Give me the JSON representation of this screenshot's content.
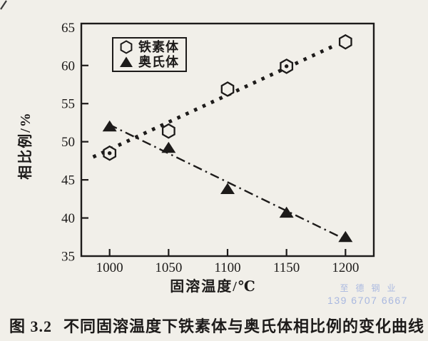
{
  "page": {
    "background": "#f1efe9",
    "ink": "#1d1b1a"
  },
  "chart_data": {
    "type": "line",
    "title": "",
    "xlabel": "固溶温度/℃",
    "ylabel": "相比例/%",
    "xlim": [
      976,
      1224
    ],
    "ylim": [
      35,
      65.5
    ],
    "x_ticks": [
      1000,
      1050,
      1100,
      1150,
      1200
    ],
    "y_ticks": [
      35,
      40,
      45,
      50,
      55,
      60,
      65
    ],
    "grid": false,
    "legend_position": "upper-left-inside",
    "categories": [
      1000,
      1050,
      1100,
      1150,
      1200
    ],
    "series": [
      {
        "name": "铁素体",
        "marker": "open-hexagon",
        "line_style": "bold-dotted",
        "values": [
          48.5,
          51.4,
          56.9,
          59.9,
          63.1
        ],
        "marker_center_dots": [
          true,
          false,
          false,
          true,
          false
        ],
        "trend_line": {
          "x1": 986,
          "y1": 48.0,
          "x2": 1192,
          "y2": 62.7
        }
      },
      {
        "name": "奥氏体",
        "marker": "filled-triangle",
        "line_style": "dash-dot",
        "values": [
          52.0,
          49.2,
          43.8,
          40.7,
          37.5
        ],
        "marker_center_dots": [
          false,
          false,
          false,
          false,
          false
        ],
        "trend_line": {
          "x1": 999,
          "y1": 52.3,
          "x2": 1197,
          "y2": 37.4
        }
      }
    ]
  },
  "watermark": {
    "line1": "至德钢业",
    "line2": "139 6707 6667",
    "color": "#a9b8e0"
  },
  "caption": {
    "figure_label": "图 3.2",
    "text": "不同固溶温度下铁素体与奥氏体相比例的变化曲线"
  }
}
